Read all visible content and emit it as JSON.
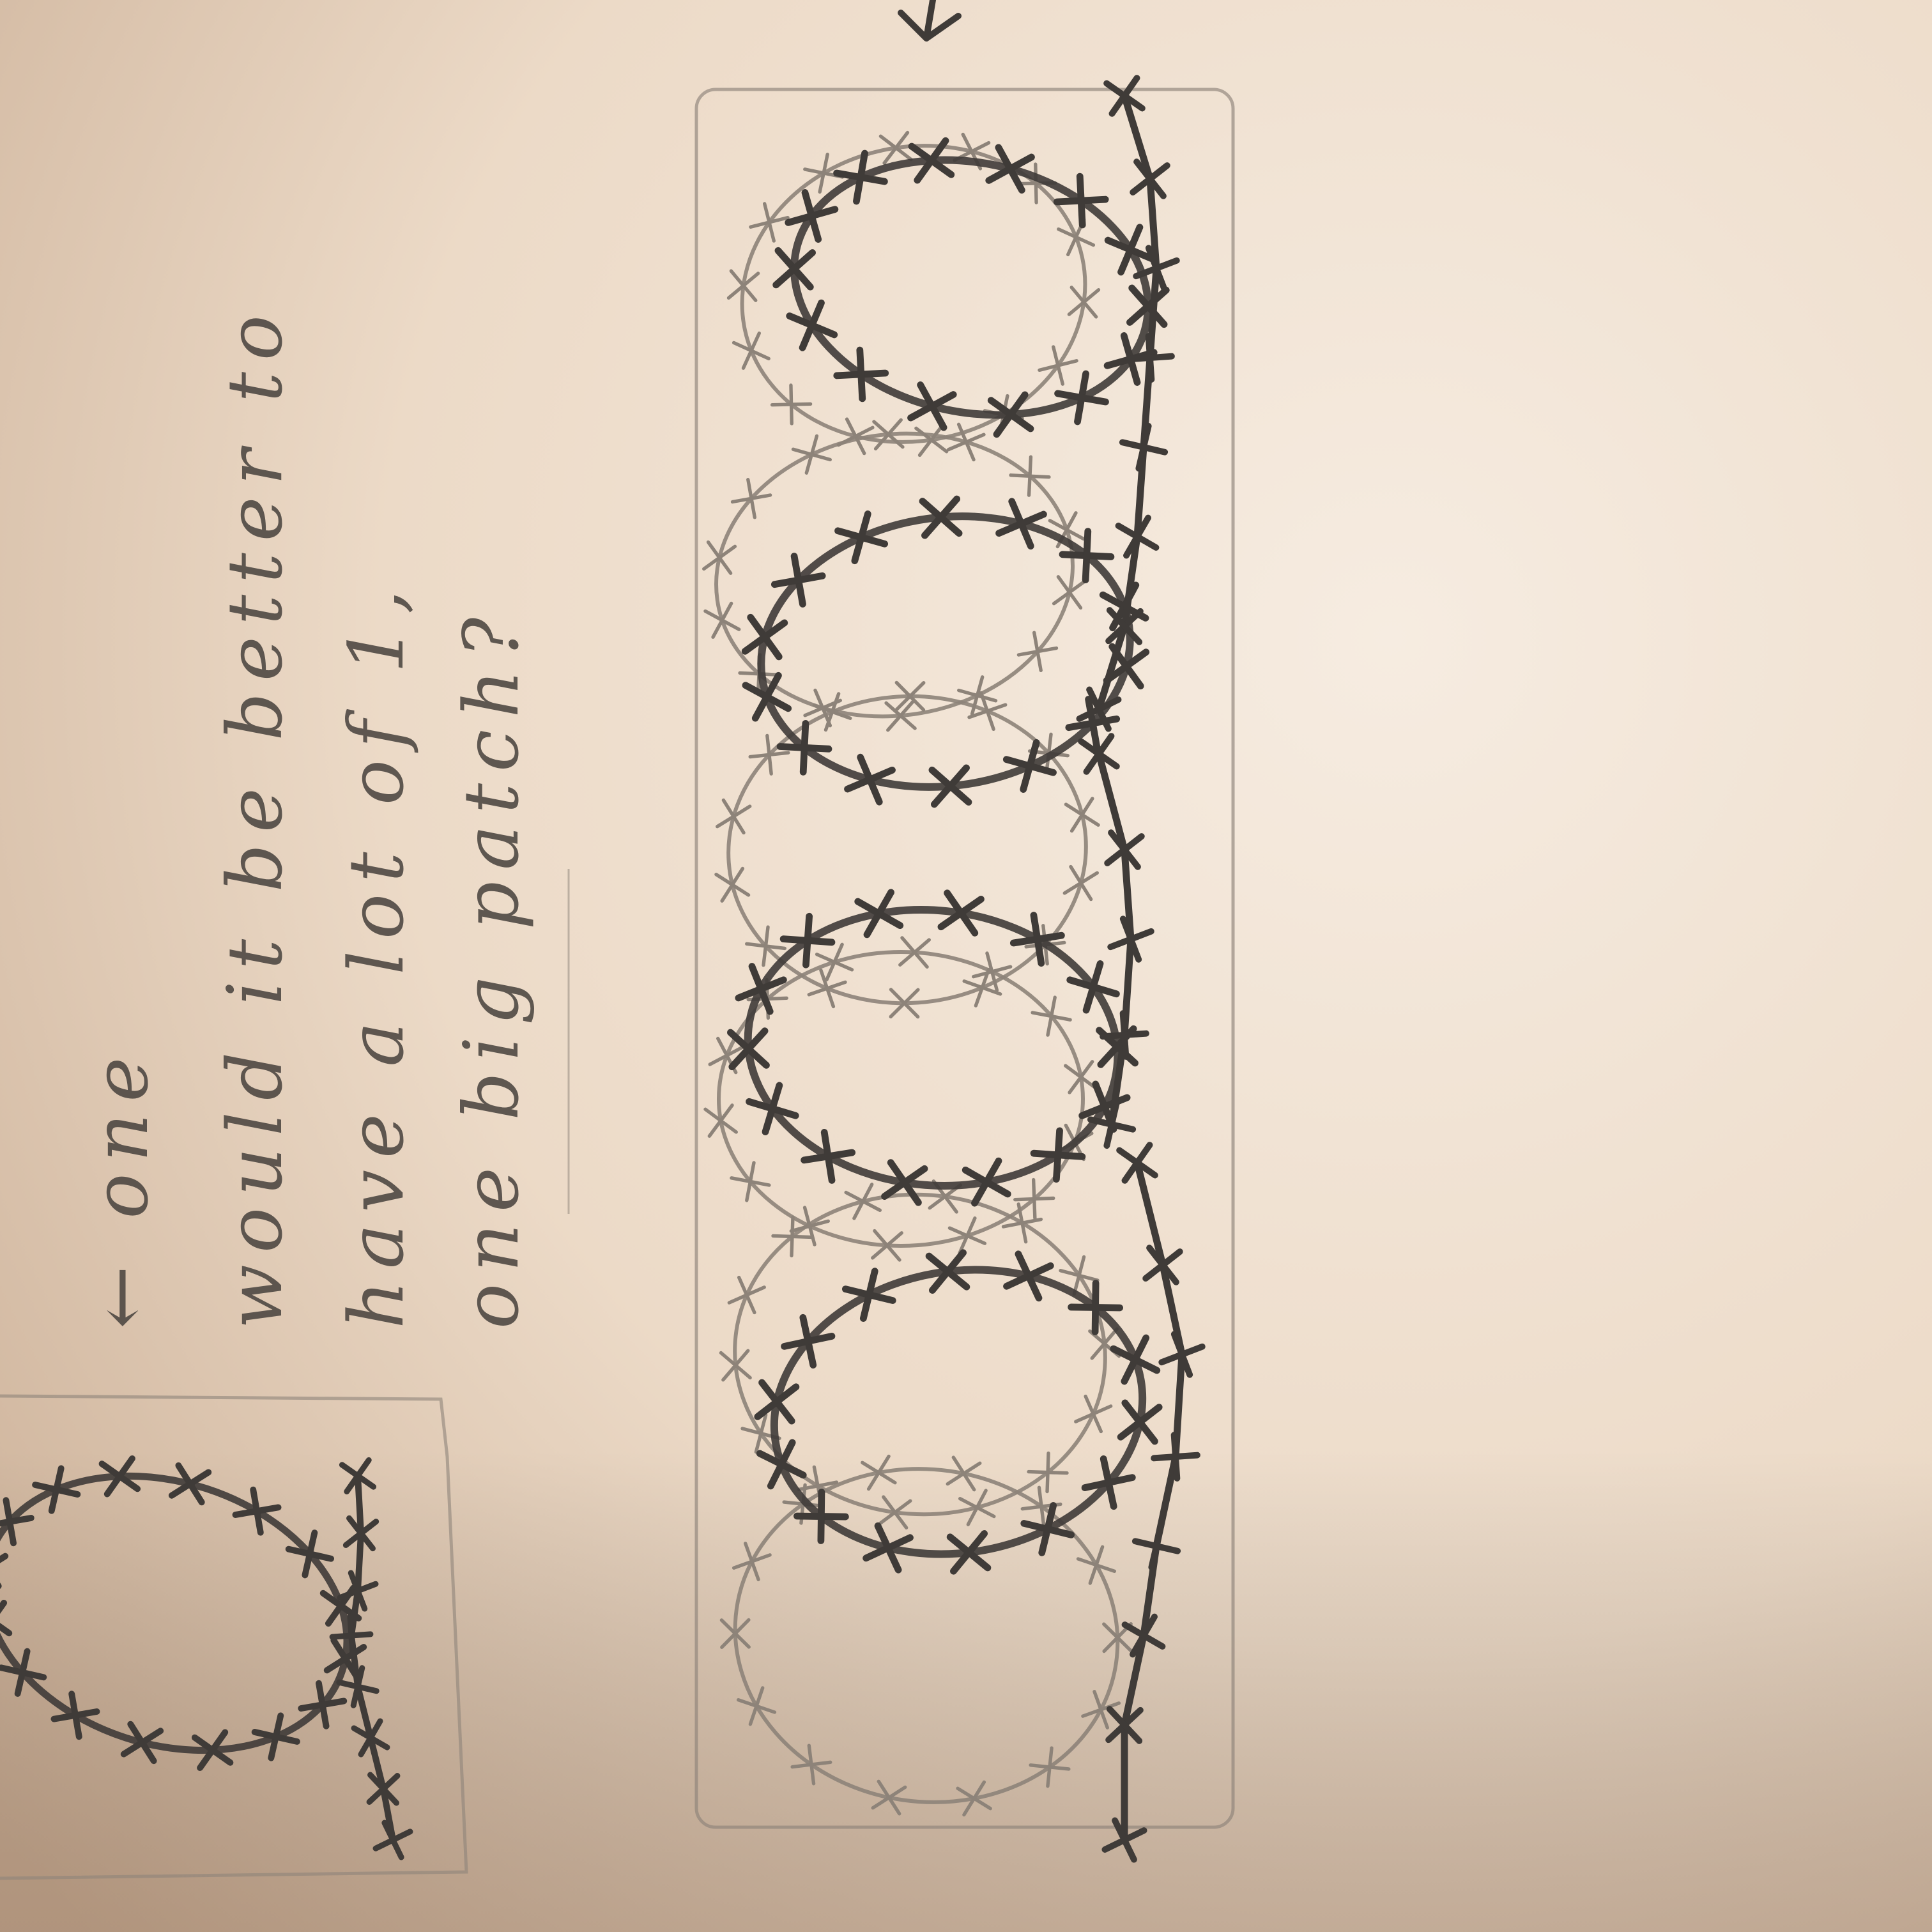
{
  "note": {
    "lines": [
      "← one",
      "would it be better to",
      "have a lot of 1,",
      "one big patch?"
    ]
  },
  "colors": {
    "paper_light": "#f6ece1",
    "paper_dark": "#c9ad94",
    "pencil": "#3f3b38",
    "pencil_faint": "#8d8379"
  },
  "sketches": [
    "single-barbed-wire-loop-swatch",
    "repeating-barbed-wire-loops-patch"
  ]
}
